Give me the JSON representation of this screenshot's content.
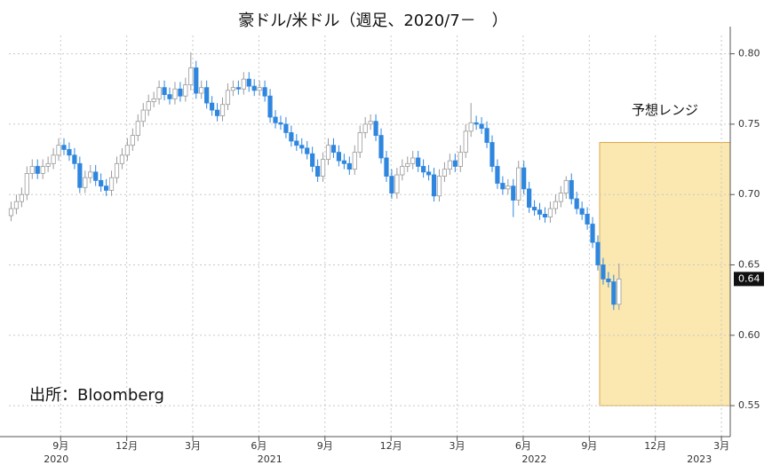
{
  "chart_data": {
    "type": "candlestick",
    "title": "豪ドル/米ドル（週足、2020/7－　）",
    "source": "出所：Bloomberg",
    "up_color": "#ffffff",
    "up_stroke": "#9a9a9a",
    "down_color": "#2e86de",
    "grid": true,
    "xlim": [
      6.15,
      38.9
    ],
    "ylim": [
      0.528,
      0.813
    ],
    "yticks": [
      {
        "value": 0.55,
        "label": "0.55"
      },
      {
        "value": 0.6,
        "label": "0.60"
      },
      {
        "value": 0.65,
        "label": "0.65"
      },
      {
        "value": 0.7,
        "label": "0.70"
      },
      {
        "value": 0.75,
        "label": "0.75"
      },
      {
        "value": 0.8,
        "label": "0.80"
      }
    ],
    "xticks": [
      {
        "value": 8.5,
        "label": "9月"
      },
      {
        "value": 11.5,
        "label": "12月"
      },
      {
        "value": 14.5,
        "label": "3月"
      },
      {
        "value": 17.5,
        "label": "6月"
      },
      {
        "value": 20.5,
        "label": "9月"
      },
      {
        "value": 23.5,
        "label": "12月"
      },
      {
        "value": 26.5,
        "label": "3月"
      },
      {
        "value": 29.5,
        "label": "6月"
      },
      {
        "value": 32.5,
        "label": "9月"
      },
      {
        "value": 35.5,
        "label": "12月"
      },
      {
        "value": 38.5,
        "label": "3月"
      }
    ],
    "year_ticks": [
      {
        "value": 8.3,
        "label": "2020"
      },
      {
        "value": 18,
        "label": "2021"
      },
      {
        "value": 30,
        "label": "2022"
      },
      {
        "value": 37.5,
        "label": "2023"
      }
    ],
    "last_value": 0.64,
    "forecast": {
      "label": "予想レンジ",
      "x": [
        32.97,
        38.9
      ],
      "y": [
        0.55,
        0.737
      ],
      "color": "#fbe7b0",
      "border": "#d9a94f"
    },
    "x": [
      6.25,
      6.49,
      6.73,
      6.97,
      7.21,
      7.45,
      7.69,
      7.93,
      8.17,
      8.41,
      8.65,
      8.89,
      9.13,
      9.37,
      9.61,
      9.85,
      10.09,
      10.33,
      10.57,
      10.81,
      11.05,
      11.29,
      11.53,
      11.77,
      12.01,
      12.25,
      12.49,
      12.73,
      12.97,
      13.21,
      13.45,
      13.69,
      13.93,
      14.17,
      14.41,
      14.65,
      14.89,
      15.13,
      15.37,
      15.61,
      15.85,
      16.09,
      16.33,
      16.57,
      16.81,
      17.05,
      17.29,
      17.53,
      17.77,
      18.01,
      18.25,
      18.49,
      18.73,
      18.97,
      19.21,
      19.45,
      19.69,
      19.93,
      20.17,
      20.41,
      20.65,
      20.89,
      21.13,
      21.37,
      21.61,
      21.85,
      22.09,
      22.33,
      22.57,
      22.81,
      23.05,
      23.29,
      23.53,
      23.77,
      24.01,
      24.25,
      24.49,
      24.73,
      24.97,
      25.21,
      25.45,
      25.69,
      25.93,
      26.17,
      26.41,
      26.65,
      26.89,
      27.13,
      27.37,
      27.61,
      27.85,
      28.09,
      28.33,
      28.57,
      28.81,
      29.05,
      29.29,
      29.53,
      29.77,
      30.01,
      30.25,
      30.49,
      30.73,
      30.97,
      31.21,
      31.45,
      31.69,
      31.93,
      32.17,
      32.41,
      32.65,
      32.89,
      33.13,
      33.37,
      33.61,
      33.85
    ],
    "open": [
      0.685,
      0.69,
      0.695,
      0.7,
      0.715,
      0.72,
      0.715,
      0.72,
      0.722,
      0.728,
      0.735,
      0.732,
      0.728,
      0.722,
      0.705,
      0.712,
      0.716,
      0.71,
      0.706,
      0.703,
      0.712,
      0.722,
      0.728,
      0.735,
      0.742,
      0.752,
      0.76,
      0.766,
      0.768,
      0.776,
      0.771,
      0.768,
      0.775,
      0.77,
      0.778,
      0.79,
      0.772,
      0.776,
      0.765,
      0.76,
      0.756,
      0.764,
      0.774,
      0.776,
      0.775,
      0.782,
      0.777,
      0.774,
      0.776,
      0.77,
      0.755,
      0.751,
      0.75,
      0.744,
      0.738,
      0.735,
      0.733,
      0.729,
      0.72,
      0.713,
      0.725,
      0.735,
      0.73,
      0.724,
      0.722,
      0.718,
      0.73,
      0.744,
      0.75,
      0.752,
      0.742,
      0.726,
      0.713,
      0.701,
      0.714,
      0.72,
      0.722,
      0.726,
      0.72,
      0.716,
      0.714,
      0.699,
      0.713,
      0.718,
      0.724,
      0.72,
      0.73,
      0.745,
      0.751,
      0.75,
      0.747,
      0.737,
      0.72,
      0.708,
      0.704,
      0.706,
      0.696,
      0.719,
      0.704,
      0.691,
      0.689,
      0.686,
      0.684,
      0.69,
      0.695,
      0.701,
      0.71,
      0.697,
      0.69,
      0.686,
      0.679,
      0.666,
      0.65,
      0.64,
      0.638,
      0.622
    ],
    "high": [
      0.695,
      0.7,
      0.705,
      0.72,
      0.725,
      0.725,
      0.725,
      0.727,
      0.733,
      0.74,
      0.74,
      0.737,
      0.733,
      0.727,
      0.717,
      0.721,
      0.721,
      0.715,
      0.711,
      0.717,
      0.727,
      0.733,
      0.74,
      0.747,
      0.757,
      0.765,
      0.771,
      0.773,
      0.781,
      0.781,
      0.776,
      0.78,
      0.78,
      0.783,
      0.801,
      0.795,
      0.781,
      0.781,
      0.77,
      0.765,
      0.769,
      0.779,
      0.781,
      0.781,
      0.787,
      0.787,
      0.782,
      0.781,
      0.781,
      0.775,
      0.76,
      0.756,
      0.755,
      0.749,
      0.743,
      0.74,
      0.738,
      0.734,
      0.725,
      0.73,
      0.74,
      0.74,
      0.735,
      0.729,
      0.727,
      0.735,
      0.749,
      0.755,
      0.757,
      0.757,
      0.747,
      0.731,
      0.718,
      0.719,
      0.725,
      0.727,
      0.731,
      0.731,
      0.725,
      0.721,
      0.719,
      0.718,
      0.723,
      0.729,
      0.729,
      0.735,
      0.75,
      0.765,
      0.756,
      0.755,
      0.752,
      0.742,
      0.725,
      0.713,
      0.711,
      0.711,
      0.724,
      0.724,
      0.709,
      0.696,
      0.694,
      0.691,
      0.695,
      0.7,
      0.706,
      0.713,
      0.715,
      0.702,
      0.695,
      0.691,
      0.684,
      0.671,
      0.655,
      0.645,
      0.643,
      0.651
    ],
    "low": [
      0.681,
      0.686,
      0.691,
      0.696,
      0.711,
      0.711,
      0.711,
      0.716,
      0.718,
      0.724,
      0.728,
      0.724,
      0.718,
      0.701,
      0.701,
      0.708,
      0.706,
      0.702,
      0.699,
      0.699,
      0.708,
      0.718,
      0.724,
      0.731,
      0.738,
      0.748,
      0.756,
      0.762,
      0.764,
      0.767,
      0.764,
      0.764,
      0.766,
      0.766,
      0.774,
      0.768,
      0.768,
      0.761,
      0.756,
      0.752,
      0.752,
      0.76,
      0.77,
      0.771,
      0.771,
      0.773,
      0.77,
      0.77,
      0.766,
      0.751,
      0.747,
      0.746,
      0.74,
      0.734,
      0.731,
      0.729,
      0.725,
      0.716,
      0.709,
      0.709,
      0.721,
      0.726,
      0.72,
      0.718,
      0.714,
      0.714,
      0.726,
      0.74,
      0.746,
      0.738,
      0.722,
      0.709,
      0.697,
      0.697,
      0.71,
      0.716,
      0.718,
      0.716,
      0.712,
      0.71,
      0.695,
      0.695,
      0.709,
      0.714,
      0.716,
      0.716,
      0.726,
      0.741,
      0.746,
      0.743,
      0.733,
      0.716,
      0.704,
      0.7,
      0.7,
      0.684,
      0.692,
      0.7,
      0.687,
      0.685,
      0.682,
      0.68,
      0.68,
      0.686,
      0.691,
      0.697,
      0.693,
      0.686,
      0.682,
      0.675,
      0.662,
      0.646,
      0.636,
      0.634,
      0.618,
      0.618
    ],
    "close": [
      0.69,
      0.695,
      0.7,
      0.715,
      0.72,
      0.715,
      0.72,
      0.722,
      0.728,
      0.735,
      0.732,
      0.728,
      0.722,
      0.705,
      0.712,
      0.716,
      0.71,
      0.706,
      0.703,
      0.712,
      0.722,
      0.728,
      0.735,
      0.742,
      0.752,
      0.76,
      0.766,
      0.768,
      0.776,
      0.771,
      0.768,
      0.775,
      0.77,
      0.778,
      0.79,
      0.772,
      0.776,
      0.765,
      0.76,
      0.756,
      0.764,
      0.774,
      0.776,
      0.775,
      0.782,
      0.777,
      0.774,
      0.776,
      0.77,
      0.755,
      0.751,
      0.75,
      0.744,
      0.738,
      0.735,
      0.733,
      0.729,
      0.72,
      0.713,
      0.725,
      0.735,
      0.73,
      0.724,
      0.722,
      0.718,
      0.73,
      0.744,
      0.75,
      0.752,
      0.742,
      0.726,
      0.713,
      0.701,
      0.714,
      0.72,
      0.722,
      0.726,
      0.72,
      0.716,
      0.714,
      0.699,
      0.713,
      0.718,
      0.724,
      0.72,
      0.73,
      0.745,
      0.751,
      0.75,
      0.747,
      0.737,
      0.72,
      0.708,
      0.704,
      0.706,
      0.696,
      0.719,
      0.704,
      0.691,
      0.689,
      0.686,
      0.684,
      0.69,
      0.695,
      0.701,
      0.71,
      0.697,
      0.69,
      0.686,
      0.679,
      0.666,
      0.65,
      0.64,
      0.638,
      0.622,
      0.64
    ]
  }
}
